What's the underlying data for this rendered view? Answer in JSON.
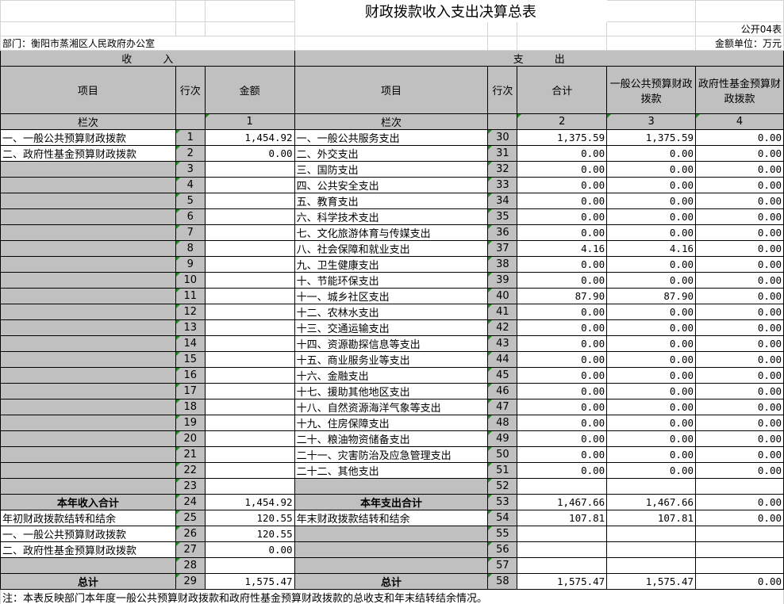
{
  "title": "财政拨款收入支出决算总表",
  "form_no": "公开04表",
  "department": "部门：衡阳市蒸湘区人民政府办公室",
  "unit": "金额单位：万元",
  "headers": {
    "income": "收　　　入",
    "expense": "支　　　出",
    "item": "项目",
    "row_no": "行次",
    "amount": "金额",
    "total": "合计",
    "general": "一般公共预算财政拨款",
    "fund": "政府性基金预算财政拨款",
    "col_label": "栏次",
    "col1": "1",
    "col2": "2",
    "col3": "3",
    "col4": "4"
  },
  "rows": [
    {
      "in_item": "一、一般公共预算财政拨款",
      "in_no": "1",
      "in_amt": "1,454.92",
      "ex_item": "一、一般公共服务支出",
      "ex_no": "30",
      "total": "1,375.59",
      "general": "1,375.59",
      "fund": "0.00"
    },
    {
      "in_item": "二、政府性基金预算财政拨款",
      "in_no": "2",
      "in_amt": "0.00",
      "ex_item": "二、外交支出",
      "ex_no": "31",
      "total": "0.00",
      "general": "0.00",
      "fund": "0.00"
    },
    {
      "in_item": "",
      "in_no": "3",
      "in_amt": "",
      "ex_item": "三、国防支出",
      "ex_no": "32",
      "total": "0.00",
      "general": "0.00",
      "fund": "0.00"
    },
    {
      "in_item": "",
      "in_no": "4",
      "in_amt": "",
      "ex_item": "四、公共安全支出",
      "ex_no": "33",
      "total": "0.00",
      "general": "0.00",
      "fund": "0.00"
    },
    {
      "in_item": "",
      "in_no": "5",
      "in_amt": "",
      "ex_item": "五、教育支出",
      "ex_no": "34",
      "total": "0.00",
      "general": "0.00",
      "fund": "0.00"
    },
    {
      "in_item": "",
      "in_no": "6",
      "in_amt": "",
      "ex_item": "六、科学技术支出",
      "ex_no": "35",
      "total": "0.00",
      "general": "0.00",
      "fund": "0.00"
    },
    {
      "in_item": "",
      "in_no": "7",
      "in_amt": "",
      "ex_item": "七、文化旅游体育与传媒支出",
      "ex_no": "36",
      "total": "0.00",
      "general": "0.00",
      "fund": "0.00"
    },
    {
      "in_item": "",
      "in_no": "8",
      "in_amt": "",
      "ex_item": "八、社会保障和就业支出",
      "ex_no": "37",
      "total": "4.16",
      "general": "4.16",
      "fund": "0.00"
    },
    {
      "in_item": "",
      "in_no": "9",
      "in_amt": "",
      "ex_item": "九、卫生健康支出",
      "ex_no": "38",
      "total": "0.00",
      "general": "0.00",
      "fund": "0.00"
    },
    {
      "in_item": "",
      "in_no": "10",
      "in_amt": "",
      "ex_item": "十、节能环保支出",
      "ex_no": "39",
      "total": "0.00",
      "general": "0.00",
      "fund": "0.00"
    },
    {
      "in_item": "",
      "in_no": "11",
      "in_amt": "",
      "ex_item": "十一、城乡社区支出",
      "ex_no": "40",
      "total": "87.90",
      "general": "87.90",
      "fund": "0.00"
    },
    {
      "in_item": "",
      "in_no": "12",
      "in_amt": "",
      "ex_item": "十二、农林水支出",
      "ex_no": "41",
      "total": "0.00",
      "general": "0.00",
      "fund": "0.00"
    },
    {
      "in_item": "",
      "in_no": "13",
      "in_amt": "",
      "ex_item": "十三、交通运输支出",
      "ex_no": "42",
      "total": "0.00",
      "general": "0.00",
      "fund": "0.00"
    },
    {
      "in_item": "",
      "in_no": "14",
      "in_amt": "",
      "ex_item": "十四、资源勘探信息等支出",
      "ex_no": "43",
      "total": "0.00",
      "general": "0.00",
      "fund": "0.00"
    },
    {
      "in_item": "",
      "in_no": "15",
      "in_amt": "",
      "ex_item": "十五、商业服务业等支出",
      "ex_no": "44",
      "total": "0.00",
      "general": "0.00",
      "fund": "0.00"
    },
    {
      "in_item": "",
      "in_no": "16",
      "in_amt": "",
      "ex_item": "十六、金融支出",
      "ex_no": "45",
      "total": "0.00",
      "general": "0.00",
      "fund": "0.00"
    },
    {
      "in_item": "",
      "in_no": "17",
      "in_amt": "",
      "ex_item": "十七、援助其他地区支出",
      "ex_no": "46",
      "total": "0.00",
      "general": "0.00",
      "fund": "0.00"
    },
    {
      "in_item": "",
      "in_no": "18",
      "in_amt": "",
      "ex_item": "十八、自然资源海洋气象等支出",
      "ex_no": "47",
      "total": "0.00",
      "general": "0.00",
      "fund": "0.00"
    },
    {
      "in_item": "",
      "in_no": "19",
      "in_amt": "",
      "ex_item": "十九、住房保障支出",
      "ex_no": "48",
      "total": "0.00",
      "general": "0.00",
      "fund": "0.00"
    },
    {
      "in_item": "",
      "in_no": "20",
      "in_amt": "",
      "ex_item": "二十、粮油物资储备支出",
      "ex_no": "49",
      "total": "0.00",
      "general": "0.00",
      "fund": "0.00"
    },
    {
      "in_item": "",
      "in_no": "21",
      "in_amt": "",
      "ex_item": "二十一、灾害防治及应急管理支出",
      "ex_no": "50",
      "total": "0.00",
      "general": "0.00",
      "fund": "0.00"
    },
    {
      "in_item": "",
      "in_no": "22",
      "in_amt": "",
      "ex_item": "二十二、其他支出",
      "ex_no": "51",
      "total": "0.00",
      "general": "0.00",
      "fund": "0.00"
    },
    {
      "in_item": "",
      "in_no": "23",
      "in_amt": "",
      "ex_item": "",
      "ex_no": "52",
      "total": "",
      "general": "",
      "fund": ""
    },
    {
      "in_item": "本年收入合计",
      "in_no": "24",
      "in_amt": "1,454.92",
      "ex_item": "本年支出合计",
      "ex_no": "53",
      "total": "1,467.66",
      "general": "1,467.66",
      "fund": "0.00"
    },
    {
      "in_item": "年初财政拨款结转和结余",
      "in_no": "25",
      "in_amt": "120.55",
      "ex_item": "年末财政拨款结转和结余",
      "ex_no": "54",
      "total": "107.81",
      "general": "107.81",
      "fund": "0.00"
    },
    {
      "in_item": "一、一般公共预算财政拨款",
      "in_no": "26",
      "in_amt": "120.55",
      "ex_item": "",
      "ex_no": "55",
      "total": "",
      "general": "",
      "fund": ""
    },
    {
      "in_item": "二、政府性基金预算财政拨款",
      "in_no": "27",
      "in_amt": "0.00",
      "ex_item": "",
      "ex_no": "56",
      "total": "",
      "general": "",
      "fund": ""
    },
    {
      "in_item": "",
      "in_no": "28",
      "in_amt": "",
      "ex_item": "",
      "ex_no": "57",
      "total": "",
      "general": "",
      "fund": ""
    },
    {
      "in_item": "总计",
      "in_no": "29",
      "in_amt": "1,575.47",
      "ex_item": "总计",
      "ex_no": "58",
      "total": "1,575.47",
      "general": "1,575.47",
      "fund": "0.00"
    }
  ],
  "note": "注：本表反映部门本年度一般公共预算财政拨款和政府性基金预算财政拨款的总收支和年末结转结余情况。"
}
